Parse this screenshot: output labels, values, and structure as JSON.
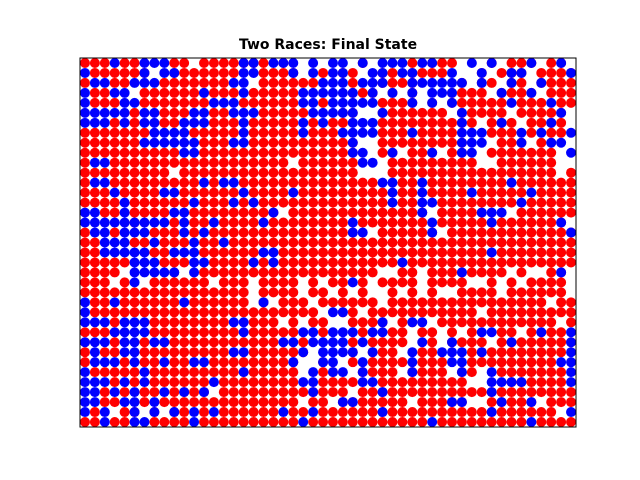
{
  "chart_data": {
    "type": "scatter",
    "title": "Two Races: Final State",
    "xlabel": "",
    "ylabel": "",
    "axis_ticks_visible": false,
    "grid": false,
    "legend": "none",
    "grid_size": [
      50,
      37
    ],
    "xlim": [
      -0.5,
      49.5
    ],
    "ylim": [
      -0.5,
      36.5
    ],
    "series": [
      {
        "color": "#ff0000",
        "rows": [
          "RRR.RR...RB.RRRRRRB.R.......R....R.RRR...R.RRR.RR.",
          ".RRRRRR..RRRRRRR..RBRR..B.BR..BR.RRRR...R.RRR.RRRR",
          "R..RR...RRRRRRR...RRRRRR...R..RRRR....R.RR.RR.RRRR",
          ".RR...RRRRRRRRRR.RRRRR.....RRR.R.R...RRRR.RRRR.RRR",
          ".RRR..RRRRRRR...RRRRRR..R.....RRRR.R.RRRRRR.RRR.RR",
          ".....R..RRR..RR...RRRRR...RR..RRRRRRR.RRRRR.RRRRR.",
          "...R.R..RR...RRR.RRRRR.R.RR...RRRRRRRRRR.RRR.RRRR.",
          "RRRRRRR....RRRRR.RRRRR.RRR....RRR.RRRR...RRR.R.RR.",
          "RRRRRR......RRR..RRRRRRRRRRR..RRRRRRRRR...RRR.RR..",
          "RRRRRRRRRR..RRRRRRRRRRRRRRRR..RR.RRR.RR..RRRRRRR..",
          "R..RRRRRRRRRRRRRRRRRR.RRRRRR...RRRRRRRRR..RRRRRR..",
          "RRRRRRRRR.RRRRRRRRRRRRRRRRRR...RRRRRRRRRRRRRRRRR.R",
          "R..RRRRRRRRR.R..RRRRRRRRRRRRRR..RR.RRRRRRRR.RRRRRR",
          "RRR.RRRR..RRRRRR.RRRR.RRRRRRRRR.RR.RRRR.RRRRR.RRRR",
          "RRRR.RRRRRR.RRR.R.RRRRRRRRRRRRR.RR..RRRRRRRR.RRRRR",
          "..RR.RRRR..RRRRRRRRR.RRRRRRRRRRRRRR.RRRRR...RRRRRR",
          ".....R...R.RR.RRRR.RRRRRRRR.RRRRRRR.RRRRRRRRRRRRR.",
          "R..R...RRR.R.RRRRRRRRRRRRRRR..RRRRRR.RRRRRRRRRRRRR",
          "RR...RR.RRR.RR.RRRRRRRRRRRRRRRRRRRRRRRRRRRRRRRRRRR",
          "RR.....RR...RRRRRR..RRRRRRRRRRRRRRRRRRRRR.RRRRRRRR",
          "RRRRR...RRR..RRRR.R.RRRRRRRRRRRR.RRRRRRRRRRRRRRRRR",
          "RRRR.....R..RRRRRRRRRRRRRRRRRR..RR.RRRRRRRR.R..RR.",
          "RRR.R..RRRRRR.RRR.RRRR.R.RR.R.RRRR.RRRR..R.R.RRRR.",
          "RRRRRRRRRRRRRRRRR.RRRR.RR.R.R..R.R.R..RRRR.RRRRRR.",
          ".RR.RRRRRR.RRRRRR.R.RRR.RRRRRR.RRRRRRRRRRRRRRRR.RR",
          ".RRRRRRRRRRRRRRRRRRRRRRR..RR.RRRRRRRRRRR.RRRRRRRRR",
          "...R...RRRRRRRR..RRR.R.RR..RRRR.RR..RRRRRRRRRRRR.R",
          "RRRR...RRRRRRRRR.RRRRR..R...R..RR.RR.R.R..RR.RRRR.",
          "R..R..R.RRRRRRRRRRRR..R....R.RRRR..R.RRRR.RRRRRRRR",
          "R.RR..RRRRRRRRR..RRRRRR....R.RRR..RR...RRRRRRRRRR.",
          "R...R.RR.RR..RRRRRRRRR..R..R.RRRR.RRR..RRRRRRRRR..",
          ".RRRRR.RRRRRRRRRRRRRRR..RR..RRRR.RRRR.RR..RRRRRRR.",
          "...R.R.RRRRRR.RRRRRRRR..RRRR..RRRRRRRRR....RRRRRR.",
          "..R.R.RR.RRRR.RRRRRRRRRRRRR.RRRRRRRRRRRRRRRRRRRRRR",
          "..RR..R.RRRRRRRRRRRRRR.RR.RRRRRRR.RRRRR..RRRRR.RRR",
          ".R..RR.R.RR.R.RRRRRR.RR.RRRRRRRRRRRRRRRRRRRRRRRR..",
          "RR.RR..RRRR.RRRRRRRRRR.RRRRRRRRRRRR.RRRRRRRRR.RRRR"
        ]
      },
      {
        "color": "#0000ff",
        "rows": [
          "...B..BBB.......BB.BBB.B.BB.B.BBB.BB...B.B...B..B.",
          "B.....B.BB......BB...B.B.BB..BB.BB...B..B..BB....B",
          ".BB..BBB.......BB.......BBB.BBB..BBBBBB.B..B..B...",
          "B..BB.......B...B.....BBBBBB.B.B.B.BBB....B..B....",
          "B...BB.......BBB......BB.BBBBB...B.B.B.....B...B..",
          "BBBBB.BB...BB..BBB.....BBBBB..B.......B.........B.",
          "BBB.B.BB..BBB...B.....B.B..BBB........B...B....B..",
          ".......BBBB.....B.....B...BBBB...B....BBB...B.B..B",
          "......BBBBBB...BB..........B..........BBB...B..BB.",
          "..........BB...............BB..B...B..BB.........B",
          ".BB.........................BB....................",
          "..................................................",
          ".BB.........B.BB..............BB..B........B......",
          "...B....BB......B....B.........B..B....B.....B....",
          "....B......B...B.B.............B..BB........B.....",
          "BB..B....BB........B..............B.....BBB.......",
          "BBBBBBBBB.B..B....B........B.......B.....B......B.",
          ".BB.BBB...B.B..............BB......B.............B",
          "..BBB..B...B..B...................................",
          "..BBBBB..BBB......BB.....................B........",
          ".....BBB...BB....B.B............B.................",
          ".....BBBBB.B..........................B.........B.",
          ".....B.....................B......................",
          "..................................................",
          "B..B......B.......B...............................",
          "B........................BB.......................",
          "BBB.BBB........BB.............B..BB...............",
          "...BBBB.........B.....BB.BBB.BB.........BB....B..B",
          "BBB.BB.BB...........BB.BBBB.B.....B..B.....B.....B",
          ".B..BB.........BB.....B.BBBB.B...B..BBB.B........B",
          ".BBB.B..B..BB........B..BB..B....B...BB.........BB",
          "B.....B.........B......B.BB.B....B....B..B.......B",
          "BBB.B.B......B........BB....BB...........BBBB....B",
          "BB.B.B..B.B.B..........B......B..........B........",
          "BB..BB.B..................BB.........BB...B..B....",
          "B.B..B.B.B.B.B......B..B......B..........B.......B",
          "..B..BB....B..........B............B.........B...."
        ]
      }
    ]
  }
}
